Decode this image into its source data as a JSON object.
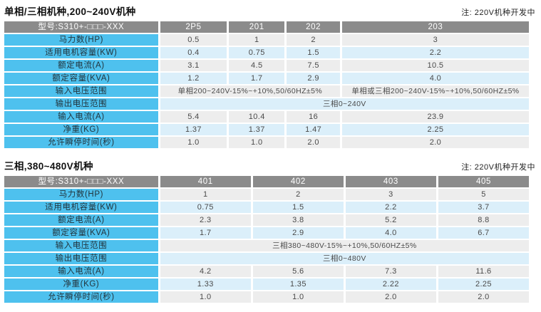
{
  "colors": {
    "header_bg": "#8b8b8b",
    "header_text": "#ffffff",
    "label_bg": "#4ec1ee",
    "band_gray": "#ededed",
    "band_blue": "#dbeffa",
    "value_text": "#4a4a4a"
  },
  "tables": [
    {
      "title": "单相/三相机种,200~240V机种",
      "note": "注: 220V机种开发中",
      "model_header": "型号:S310+-□□□-XXX",
      "columns": [
        "2P5",
        "201",
        "202",
        "203"
      ],
      "rows": [
        {
          "label": "马力数(HP)",
          "values": [
            "0.5",
            "1",
            "2",
            "3"
          ]
        },
        {
          "label": "适用电机容量(KW)",
          "values": [
            "0.4",
            "0.75",
            "1.5",
            "2.2"
          ]
        },
        {
          "label": "额定电流(A)",
          "values": [
            "3.1",
            "4.5",
            "7.5",
            "10.5"
          ]
        },
        {
          "label": "额定容量(KVA)",
          "values": [
            "1.2",
            "1.7",
            "2.9",
            "4.0"
          ]
        },
        {
          "label": "输入电压范围",
          "spans": [
            {
              "cols": 3,
              "text": "单相200~240V-15%~+10%,50/60HZ±5%"
            },
            {
              "cols": 1,
              "text": "单相或三相200~240V-15%~+10%,50/60HZ±5%"
            }
          ]
        },
        {
          "label": "输出电压范围",
          "spans": [
            {
              "cols": 4,
              "text": "三相0~240V"
            }
          ]
        },
        {
          "label": "输入电流(A)",
          "values": [
            "5.4",
            "10.4",
            "16",
            "23.9"
          ]
        },
        {
          "label": "净重(KG)",
          "values": [
            "1.37",
            "1.37",
            "1.47",
            "2.25"
          ]
        },
        {
          "label": "允许瞬停时间(秒)",
          "values": [
            "1.0",
            "1.0",
            "2.0",
            "2.0"
          ]
        }
      ]
    },
    {
      "title": "三相,380~480V机种",
      "note": "注: 220V机种开发中",
      "model_header": "型号:S310+-□□□-XXX",
      "columns": [
        "401",
        "402",
        "403",
        "405"
      ],
      "rows": [
        {
          "label": "马力数(HP)",
          "values": [
            "1",
            "2",
            "3",
            "5"
          ]
        },
        {
          "label": "适用电机容量(KW)",
          "values": [
            "0.75",
            "1.5",
            "2.2",
            "3.7"
          ]
        },
        {
          "label": "额定电流(A)",
          "values": [
            "2.3",
            "3.8",
            "5.2",
            "8.8"
          ]
        },
        {
          "label": "额定容量(KVA)",
          "values": [
            "1.7",
            "2.9",
            "4.0",
            "6.7"
          ]
        },
        {
          "label": "输入电压范围",
          "spans": [
            {
              "cols": 4,
              "text": "三相380~480V-15%~+10%,50/60HZ±5%"
            }
          ]
        },
        {
          "label": "输出电压范围",
          "spans": [
            {
              "cols": 4,
              "text": "三相0~480V"
            }
          ]
        },
        {
          "label": "输入电流(A)",
          "values": [
            "4.2",
            "5.6",
            "7.3",
            "11.6"
          ]
        },
        {
          "label": "净重(KG)",
          "values": [
            "1.33",
            "1.35",
            "2.22",
            "2.25"
          ]
        },
        {
          "label": "允许瞬停时间(秒)",
          "values": [
            "1.0",
            "1.0",
            "2.0",
            "2.0"
          ]
        }
      ]
    }
  ]
}
